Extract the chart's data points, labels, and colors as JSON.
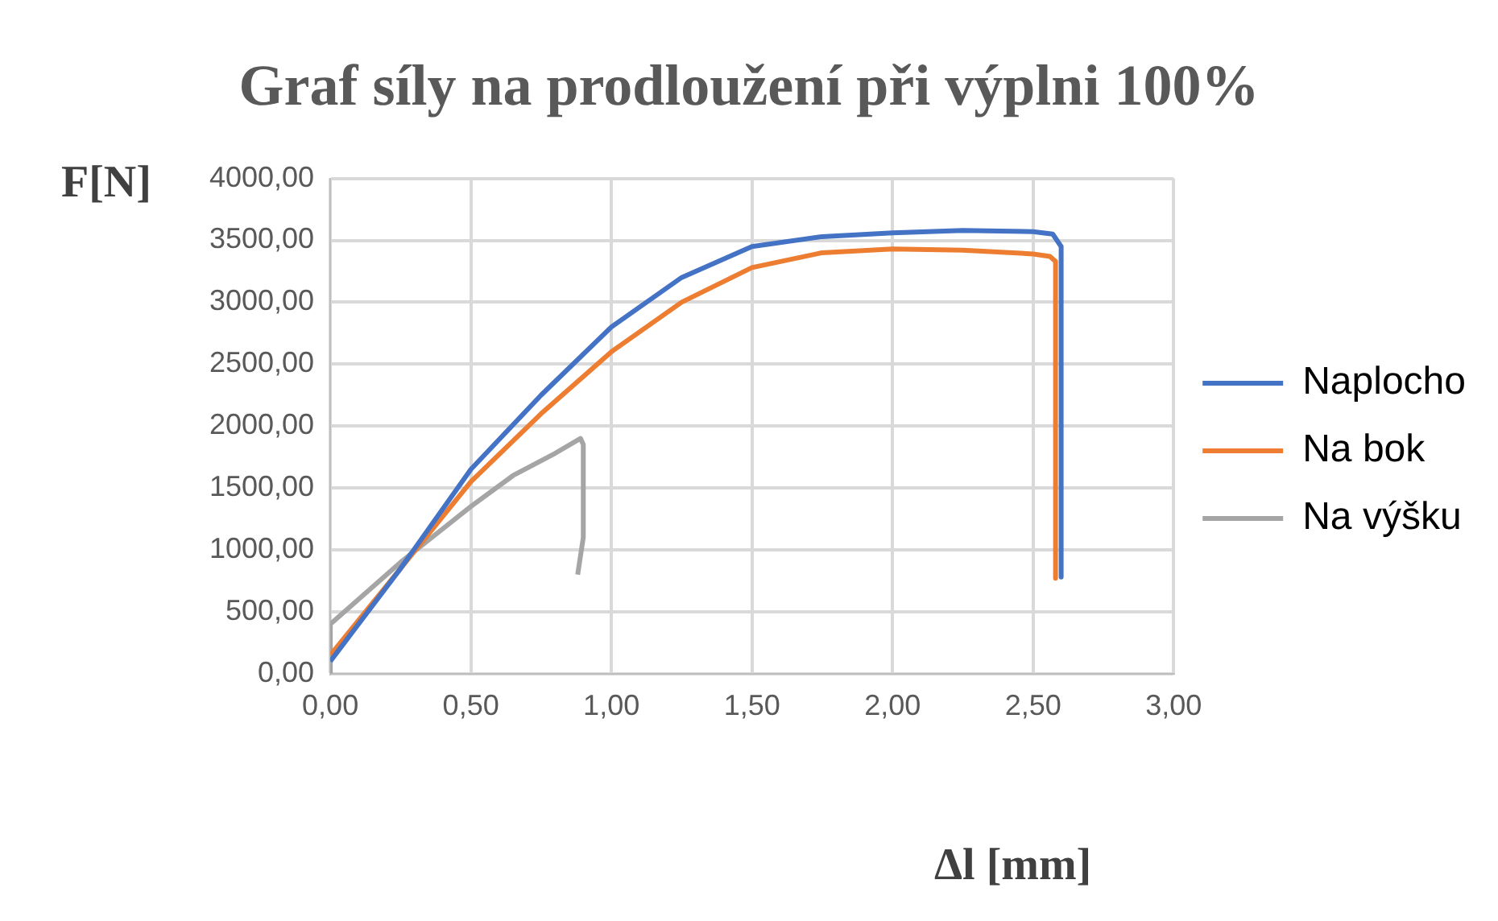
{
  "chart_data": {
    "type": "line",
    "title": "Graf síly na prodloužení při výplni 100%",
    "xlabel": "Δl [mm]",
    "ylabel": "F[N]",
    "xlim": [
      0,
      3
    ],
    "xticks": [
      {
        "value": 0,
        "label": "0,00"
      },
      {
        "value": 0.5,
        "label": "0,50"
      },
      {
        "value": 1,
        "label": "1,00"
      },
      {
        "value": 1.5,
        "label": "1,50"
      },
      {
        "value": 2,
        "label": "2,00"
      },
      {
        "value": 2.5,
        "label": "2,50"
      },
      {
        "value": 3,
        "label": "3,00"
      }
    ],
    "ylim": [
      0,
      4000
    ],
    "yticks": [
      {
        "value": 0,
        "label": "0,00"
      },
      {
        "value": 500,
        "label": "500,00"
      },
      {
        "value": 1000,
        "label": "1000,00"
      },
      {
        "value": 1500,
        "label": "1500,00"
      },
      {
        "value": 2000,
        "label": "2000,00"
      },
      {
        "value": 2500,
        "label": "2500,00"
      },
      {
        "value": 3000,
        "label": "3000,00"
      },
      {
        "value": 3500,
        "label": "3500,00"
      },
      {
        "value": 4000,
        "label": "4000,00"
      }
    ],
    "grid": true,
    "legend": "right",
    "marker": "none",
    "line_style": "solid",
    "series": [
      {
        "name": "Naplocho",
        "color": "#4472c4",
        "x": [
          0,
          0.25,
          0.5,
          0.75,
          1,
          1.25,
          1.5,
          1.75,
          2,
          2.25,
          2.5,
          2.57,
          2.6,
          2.6
        ],
        "values": [
          100,
          850,
          1650,
          2250,
          2800,
          3200,
          3450,
          3530,
          3560,
          3580,
          3570,
          3550,
          3450,
          780
        ]
      },
      {
        "name": "Na bok",
        "color": "#ed7d31",
        "x": [
          0,
          0.25,
          0.5,
          0.75,
          1,
          1.25,
          1.5,
          1.75,
          2,
          2.25,
          2.5,
          2.56,
          2.58,
          2.58
        ],
        "values": [
          150,
          850,
          1550,
          2100,
          2600,
          3000,
          3280,
          3400,
          3430,
          3420,
          3390,
          3370,
          3330,
          770
        ]
      },
      {
        "name": "Na výšku",
        "color": "#a5a5a5",
        "x": [
          0,
          0,
          0.25,
          0.5,
          0.65,
          0.8,
          0.89,
          0.9,
          0.9,
          0.88
        ],
        "values": [
          0,
          400,
          900,
          1350,
          1600,
          1780,
          1900,
          1850,
          1100,
          800
        ]
      }
    ]
  }
}
